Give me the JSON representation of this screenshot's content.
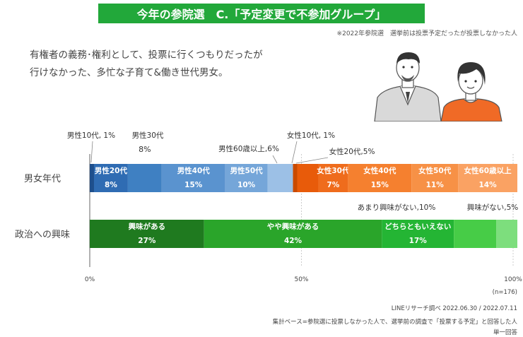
{
  "header": {
    "title": "今年の参院選　C.「予定変更で不参加グループ」",
    "note": "※2022年参院選　選挙前は投票予定だったが投票しなかった人"
  },
  "description": {
    "lines": [
      "有権者の義務･権利として、投票に行くつもりだったが",
      "行けなかった、多忙な子育て&働き世代男女。"
    ]
  },
  "illustration": {
    "figures": [
      "man-icon",
      "woman-icon"
    ],
    "colors": {
      "man_jacket": "#d9d9d9",
      "woman_top": "#f06a26",
      "skin": "#ffffff",
      "hair": "#333333"
    }
  },
  "chart_data": {
    "type": "bar",
    "orientation": "horizontal-stacked-100",
    "xlim": [
      0,
      100
    ],
    "x_ticks": [
      "0%",
      "50%",
      "100%"
    ],
    "n_label": "(n=176)",
    "rows": [
      {
        "label": "男女年代",
        "segments": [
          {
            "name": "男性10代",
            "value": 1,
            "value_label": "1%",
            "callout": "男性10代, 1%",
            "color": "#1e4f8c"
          },
          {
            "name": "男性20代",
            "value": 8,
            "value_label": "8%",
            "color": "#2f6cb3"
          },
          {
            "name": "男性30代",
            "value": 8,
            "value_label": "8%",
            "callout": "男性30代",
            "color": "#3f80c2"
          },
          {
            "name": "男性40代",
            "value": 15,
            "value_label": "15%",
            "color": "#5a93cf"
          },
          {
            "name": "男性50代",
            "value": 10,
            "value_label": "10%",
            "color": "#75a6d9"
          },
          {
            "name": "男性60歳以上",
            "value": 6,
            "value_label": "6%",
            "callout": "男性60歳以上,6%",
            "color": "#9cc0e6"
          },
          {
            "name": "女性10代",
            "value": 1,
            "value_label": "1%",
            "callout": "女性10代, 1%",
            "color": "#c94a00"
          },
          {
            "name": "女性20代",
            "value": 5,
            "value_label": "5%",
            "callout": "女性20代,5%",
            "color": "#e85b0a"
          },
          {
            "name": "女性30代",
            "value": 7,
            "value_label": "7%",
            "color": "#ef6c1c"
          },
          {
            "name": "女性40代",
            "value": 15,
            "value_label": "15%",
            "color": "#f5802f"
          },
          {
            "name": "女性50代",
            "value": 11,
            "value_label": "11%",
            "color": "#f79146"
          },
          {
            "name": "女性60歳以上",
            "value": 14,
            "value_label": "14%",
            "color": "#faa263"
          }
        ]
      },
      {
        "label": "政治への興味",
        "segments": [
          {
            "name": "興味がある",
            "value": 27,
            "value_label": "27%",
            "color": "#1f7a1f"
          },
          {
            "name": "やや興味がある",
            "value": 42,
            "value_label": "42%",
            "color": "#2aa52a"
          },
          {
            "name": "どちらともいえない",
            "value": 17,
            "value_label": "17%",
            "color": "#24b534"
          },
          {
            "name": "あまり興味がない",
            "value": 10,
            "value_label": "10%",
            "callout": "あまり興味がない,10%",
            "color": "#47cc47"
          },
          {
            "name": "興味がない",
            "value": 5,
            "value_label": "5%",
            "callout": "興味がない,5%",
            "color": "#7dde7d"
          }
        ]
      }
    ],
    "segment_label_color": "#ffffff"
  },
  "footer": {
    "source": "LINEリサーチ調べ 2022.06.30 / 2022.07.11",
    "base": "集計ベース=参院選に投票しなかった人で、選挙前の調査で「投票する予定」と回答した人",
    "answer_type": "単一回答"
  }
}
